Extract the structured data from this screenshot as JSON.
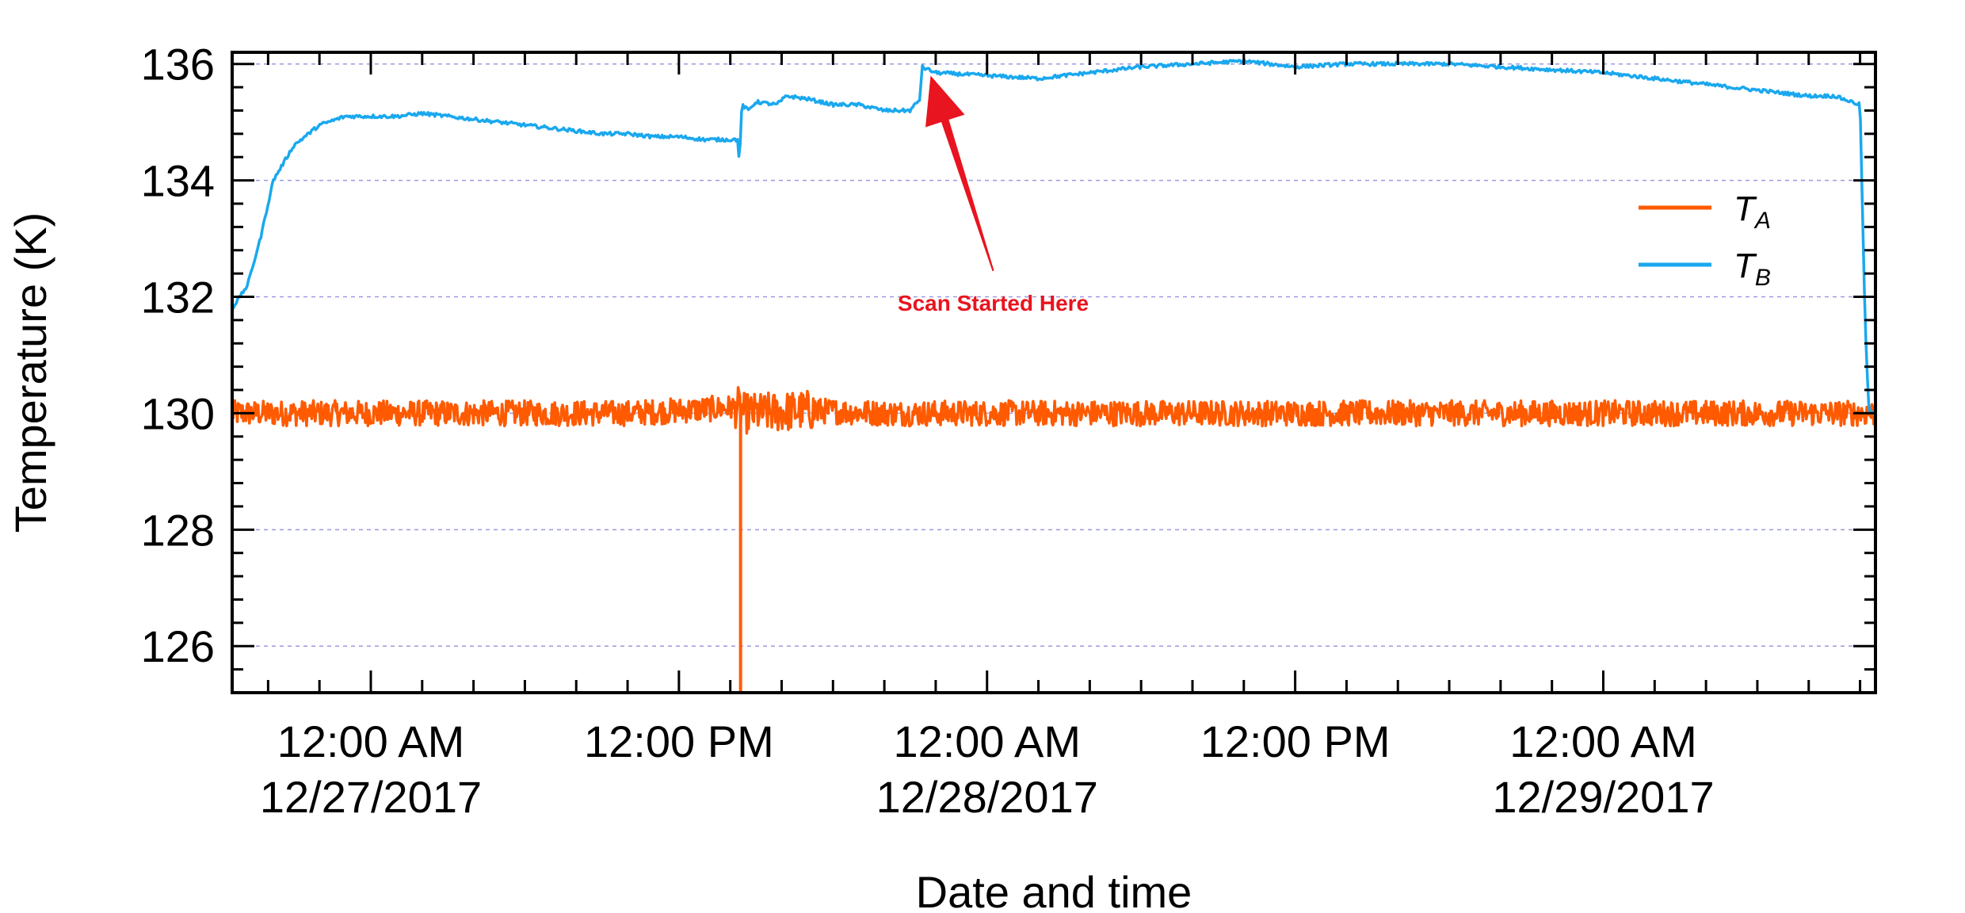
{
  "chart_data": {
    "type": "line",
    "title": "",
    "xlabel": "Date and time",
    "ylabel": "Temperature (K)",
    "xlim_hours": [
      -5.4,
      58.6
    ],
    "ylim": [
      125.2,
      136.2
    ],
    "y_ticks": [
      126,
      128,
      130,
      132,
      134,
      136
    ],
    "y_tick_labels": [
      "126",
      "128",
      "130",
      "132",
      "134",
      "136"
    ],
    "x_ticks": [
      {
        "hours": 0,
        "time": "12:00 AM",
        "date": "12/27/2017"
      },
      {
        "hours": 12,
        "time": "12:00 PM",
        "date": ""
      },
      {
        "hours": 24,
        "time": "12:00 AM",
        "date": "12/28/2017"
      },
      {
        "hours": 36,
        "time": "12:00 PM",
        "date": ""
      },
      {
        "hours": 48,
        "time": "12:00 AM",
        "date": "12/29/2017"
      }
    ],
    "grid": "horizontal-dashed",
    "legend_position": "right",
    "series": [
      {
        "name": "T",
        "subscript": "A",
        "color": "#ff5a00",
        "noise": 0.22,
        "x": [
          -5.4,
          0,
          10,
          14.3,
          14.5,
          15,
          17,
          20,
          30,
          40,
          50,
          58.6
        ],
        "y": [
          130.0,
          130.0,
          130.0,
          130.1,
          130.0,
          130.0,
          130.05,
          130.0,
          130.0,
          130.0,
          130.0,
          130.0
        ],
        "spike": {
          "x": 14.4,
          "y": 125.2
        }
      },
      {
        "name": "T",
        "subscript": "B",
        "color": "#1aa8ee",
        "noise": 0.03,
        "x": [
          -5.4,
          -4.8,
          -4.3,
          -3.8,
          -3.0,
          -2.0,
          -1.0,
          0.0,
          1.0,
          2.0,
          3.0,
          4.0,
          5.0,
          6.0,
          7.0,
          8.0,
          9.0,
          10.0,
          11.0,
          12.0,
          13.0,
          14.3,
          14.35,
          14.4,
          14.45,
          14.7,
          15.0,
          15.8,
          16.2,
          17.0,
          18.0,
          19.0,
          20.0,
          21.0,
          21.4,
          21.45,
          22.0,
          24.0,
          26.0,
          28.0,
          29.0,
          30.0,
          32.0,
          34.0,
          36.0,
          38.0,
          40.0,
          42.0,
          44.0,
          46.0,
          48.0,
          50.0,
          52.0,
          54.0,
          56.0,
          57.0,
          58.0,
          58.2,
          58.35,
          58.6
        ],
        "y": [
          131.8,
          132.2,
          133.0,
          134.0,
          134.6,
          134.95,
          135.1,
          135.1,
          135.1,
          135.15,
          135.1,
          135.05,
          135.0,
          134.95,
          134.9,
          134.85,
          134.8,
          134.8,
          134.75,
          134.75,
          134.7,
          134.7,
          134.3,
          134.7,
          135.3,
          135.2,
          135.35,
          135.3,
          135.45,
          135.4,
          135.3,
          135.3,
          135.2,
          135.2,
          135.4,
          135.95,
          135.85,
          135.8,
          135.75,
          135.85,
          135.9,
          135.95,
          136.0,
          136.05,
          135.95,
          136.0,
          136.0,
          136.0,
          135.95,
          135.9,
          135.85,
          135.75,
          135.65,
          135.55,
          135.45,
          135.45,
          135.3,
          131.5,
          130.0,
          130.0
        ]
      }
    ],
    "annotations": [
      {
        "text": "Scan Started Here",
        "color": "#e8141f",
        "target": {
          "hours": 21.8,
          "y": 135.8
        },
        "text_at": {
          "hours": 21.0,
          "y": 131.9
        }
      }
    ]
  },
  "legend": {
    "items": [
      {
        "label": "T",
        "sub": "A"
      },
      {
        "label": "T",
        "sub": "B"
      }
    ]
  }
}
